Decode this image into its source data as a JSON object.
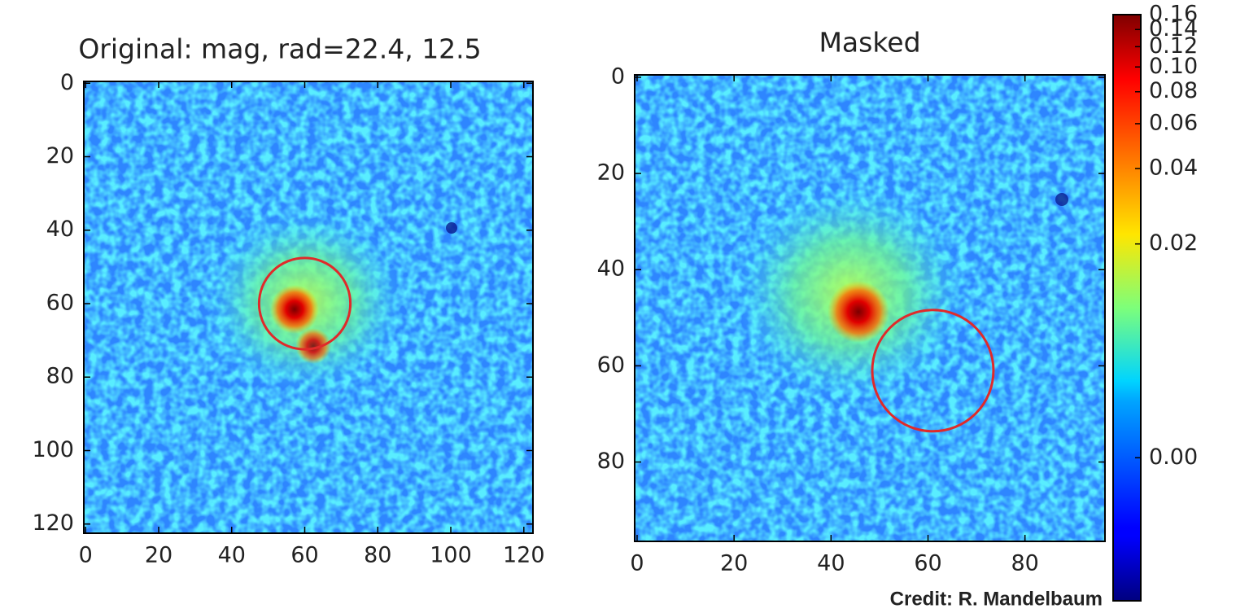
{
  "chart_data": [
    {
      "type": "image",
      "title": "Original: mag, rad=22.4, 12.5",
      "xlim": [
        -0.5,
        122.5
      ],
      "ylim": [
        122.5,
        -0.5
      ],
      "xticks": [
        0,
        20,
        40,
        60,
        80,
        100,
        120
      ],
      "yticks": [
        0,
        20,
        40,
        60,
        80,
        100,
        120
      ],
      "circles": [
        {
          "x": 60,
          "y": 60,
          "r": 12.5,
          "color": "#e02a2a"
        }
      ]
    },
    {
      "type": "image",
      "title": "Masked",
      "xlim": [
        -0.5,
        96.5
      ],
      "ylim": [
        96.5,
        -0.5
      ],
      "xticks": [
        0,
        20,
        40,
        60,
        80
      ],
      "yticks": [
        0,
        20,
        40,
        60,
        80
      ],
      "circles": [
        {
          "x": 61,
          "y": 61,
          "r": 12.5,
          "color": "#e02a2a"
        }
      ]
    },
    {
      "type": "colorbar",
      "colormap": "jet",
      "scale": "asinh",
      "clim": [
        -0.01,
        0.16
      ],
      "ticks": [
        {
          "value": 0,
          "label": "0.00"
        },
        {
          "value": 0.02,
          "label": "0.02"
        },
        {
          "value": 0.04,
          "label": "0.04"
        },
        {
          "value": 0.06,
          "label": "0.06"
        },
        {
          "value": 0.08,
          "label": "0.08"
        },
        {
          "value": 0.1,
          "label": "0.10"
        },
        {
          "value": 0.12,
          "label": "0.12"
        },
        {
          "value": 0.14,
          "label": "0.14"
        },
        {
          "value": 0.16,
          "label": "0.16"
        }
      ]
    }
  ],
  "credit": "Credit: R. Mandelbaum"
}
